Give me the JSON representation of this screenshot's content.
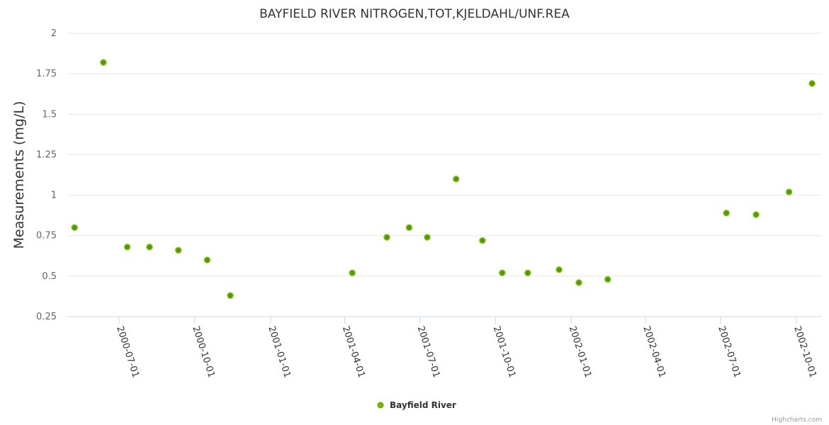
{
  "chart_data": {
    "type": "scatter",
    "title": "BAYFIELD RIVER NITROGEN,TOT,KJELDAHL/UNF.REA",
    "xlabel": "",
    "ylabel": "Measurements (mg/L)",
    "ylim": [
      0.25,
      2
    ],
    "yticks": [
      "0.25",
      "0.5",
      "0.75",
      "1",
      "1.25",
      "1.5",
      "1.75",
      "2"
    ],
    "xticks": [
      "2000-07-01",
      "2000-10-01",
      "2001-01-01",
      "2001-04-01",
      "2001-07-01",
      "2001-10-01",
      "2002-01-01",
      "2002-04-01",
      "2002-07-01",
      "2002-10-01"
    ],
    "grid": true,
    "legend_position": "bottom-center",
    "series": [
      {
        "name": "Bayfield River",
        "color": "#7cb209",
        "points": [
          {
            "x": "2000-05-08",
            "y": 0.8
          },
          {
            "x": "2000-06-12",
            "y": 1.82
          },
          {
            "x": "2000-07-11",
            "y": 0.68
          },
          {
            "x": "2000-08-07",
            "y": 0.68
          },
          {
            "x": "2000-09-11",
            "y": 0.66
          },
          {
            "x": "2000-10-16",
            "y": 0.6
          },
          {
            "x": "2000-11-13",
            "y": 0.38
          },
          {
            "x": "2001-04-10",
            "y": 0.52
          },
          {
            "x": "2001-05-22",
            "y": 0.74
          },
          {
            "x": "2001-06-18",
            "y": 0.8
          },
          {
            "x": "2001-07-10",
            "y": 0.74
          },
          {
            "x": "2001-08-14",
            "y": 1.1
          },
          {
            "x": "2001-09-15",
            "y": 0.72
          },
          {
            "x": "2001-10-09",
            "y": 0.52
          },
          {
            "x": "2001-11-09",
            "y": 0.52
          },
          {
            "x": "2001-12-17",
            "y": 0.54
          },
          {
            "x": "2002-01-10",
            "y": 0.46
          },
          {
            "x": "2002-02-14",
            "y": 0.48
          },
          {
            "x": "2002-07-08",
            "y": 0.89
          },
          {
            "x": "2002-08-13",
            "y": 0.88
          },
          {
            "x": "2002-09-22",
            "y": 1.02
          },
          {
            "x": "2002-10-20",
            "y": 1.69
          }
        ]
      }
    ]
  },
  "credits": "Highcharts.com"
}
